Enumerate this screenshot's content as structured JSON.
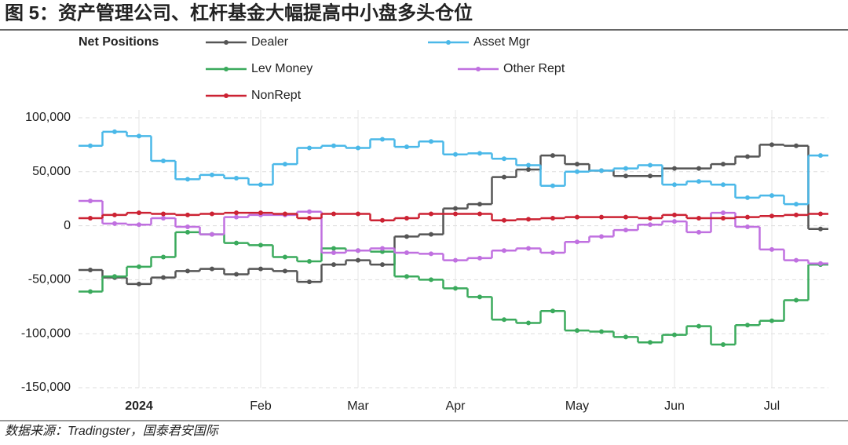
{
  "title": "图 5：资产管理公司、杠杆基金大幅提高中小盘多头仓位",
  "source": "数据来源：Tradingster，国泰君安国际",
  "chart_data": {
    "type": "step",
    "legend_title": "Net Positions",
    "categories": [
      null,
      null,
      "2024",
      null,
      null,
      null,
      null,
      "Feb",
      null,
      null,
      null,
      "Mar",
      null,
      null,
      null,
      "Apr",
      null,
      null,
      null,
      null,
      "May",
      null,
      null,
      null,
      "Jun",
      null,
      null,
      null,
      "Jul",
      null,
      null
    ],
    "ylim": [
      -150000,
      100000
    ],
    "yticks": [
      {
        "value": 100000,
        "label": "100,000"
      },
      {
        "value": 50000,
        "label": "50,000"
      },
      0,
      {
        "value": -50000,
        "label": "-50,000"
      },
      {
        "value": -100000,
        "label": "-100,000"
      },
      {
        "value": -150000,
        "label": "-150,000"
      }
    ],
    "grid": true,
    "series": [
      {
        "name": "Dealer",
        "color": "#555555",
        "values": [
          -41000,
          -48000,
          -54000,
          -48000,
          -42000,
          -40000,
          -45000,
          -40000,
          -42000,
          -52000,
          -36000,
          -32000,
          -36000,
          -10000,
          -8000,
          16000,
          20000,
          45000,
          52000,
          65000,
          57000,
          51000,
          46000,
          46000,
          53000,
          53000,
          57000,
          64000,
          75000,
          74000,
          -3000
        ]
      },
      {
        "name": "Asset Mgr",
        "color": "#4ab8e8",
        "values": [
          74000,
          87000,
          83000,
          60000,
          43000,
          47000,
          44000,
          38000,
          57000,
          72000,
          74000,
          72000,
          80000,
          73000,
          78000,
          66000,
          67000,
          62000,
          56000,
          37000,
          50000,
          51000,
          53000,
          56000,
          38000,
          41000,
          38000,
          26000,
          28000,
          20000,
          65000
        ]
      },
      {
        "name": "Lev Money",
        "color": "#3aaa5c",
        "values": [
          -61000,
          -47000,
          -38000,
          -29000,
          -6000,
          -8000,
          -16000,
          -18000,
          -29000,
          -33000,
          -21000,
          -23000,
          -24000,
          -47000,
          -50000,
          -58000,
          -66000,
          -87000,
          -90000,
          -79000,
          -97000,
          -98000,
          -103000,
          -108000,
          -101000,
          -93000,
          -110000,
          -92000,
          -88000,
          -69000,
          -36000
        ]
      },
      {
        "name": "Other Rept",
        "color": "#c070e0",
        "values": [
          23000,
          2000,
          1000,
          7000,
          -1000,
          -8000,
          8000,
          10000,
          10000,
          13000,
          -25000,
          -23000,
          -21000,
          -25000,
          -26000,
          -32000,
          -30000,
          -23000,
          -21000,
          -25000,
          -15000,
          -10000,
          -4000,
          1000,
          4000,
          -6000,
          12000,
          -1000,
          -22000,
          -32000,
          -35000
        ]
      },
      {
        "name": "NonRept",
        "color": "#cc2233",
        "values": [
          7000,
          10000,
          12000,
          11000,
          10000,
          11000,
          12000,
          12000,
          11000,
          7000,
          11000,
          11000,
          5000,
          7000,
          11000,
          11000,
          11000,
          5000,
          6000,
          7000,
          8000,
          8000,
          8000,
          7000,
          10000,
          7000,
          7000,
          8000,
          9000,
          10000,
          11000
        ]
      }
    ]
  }
}
